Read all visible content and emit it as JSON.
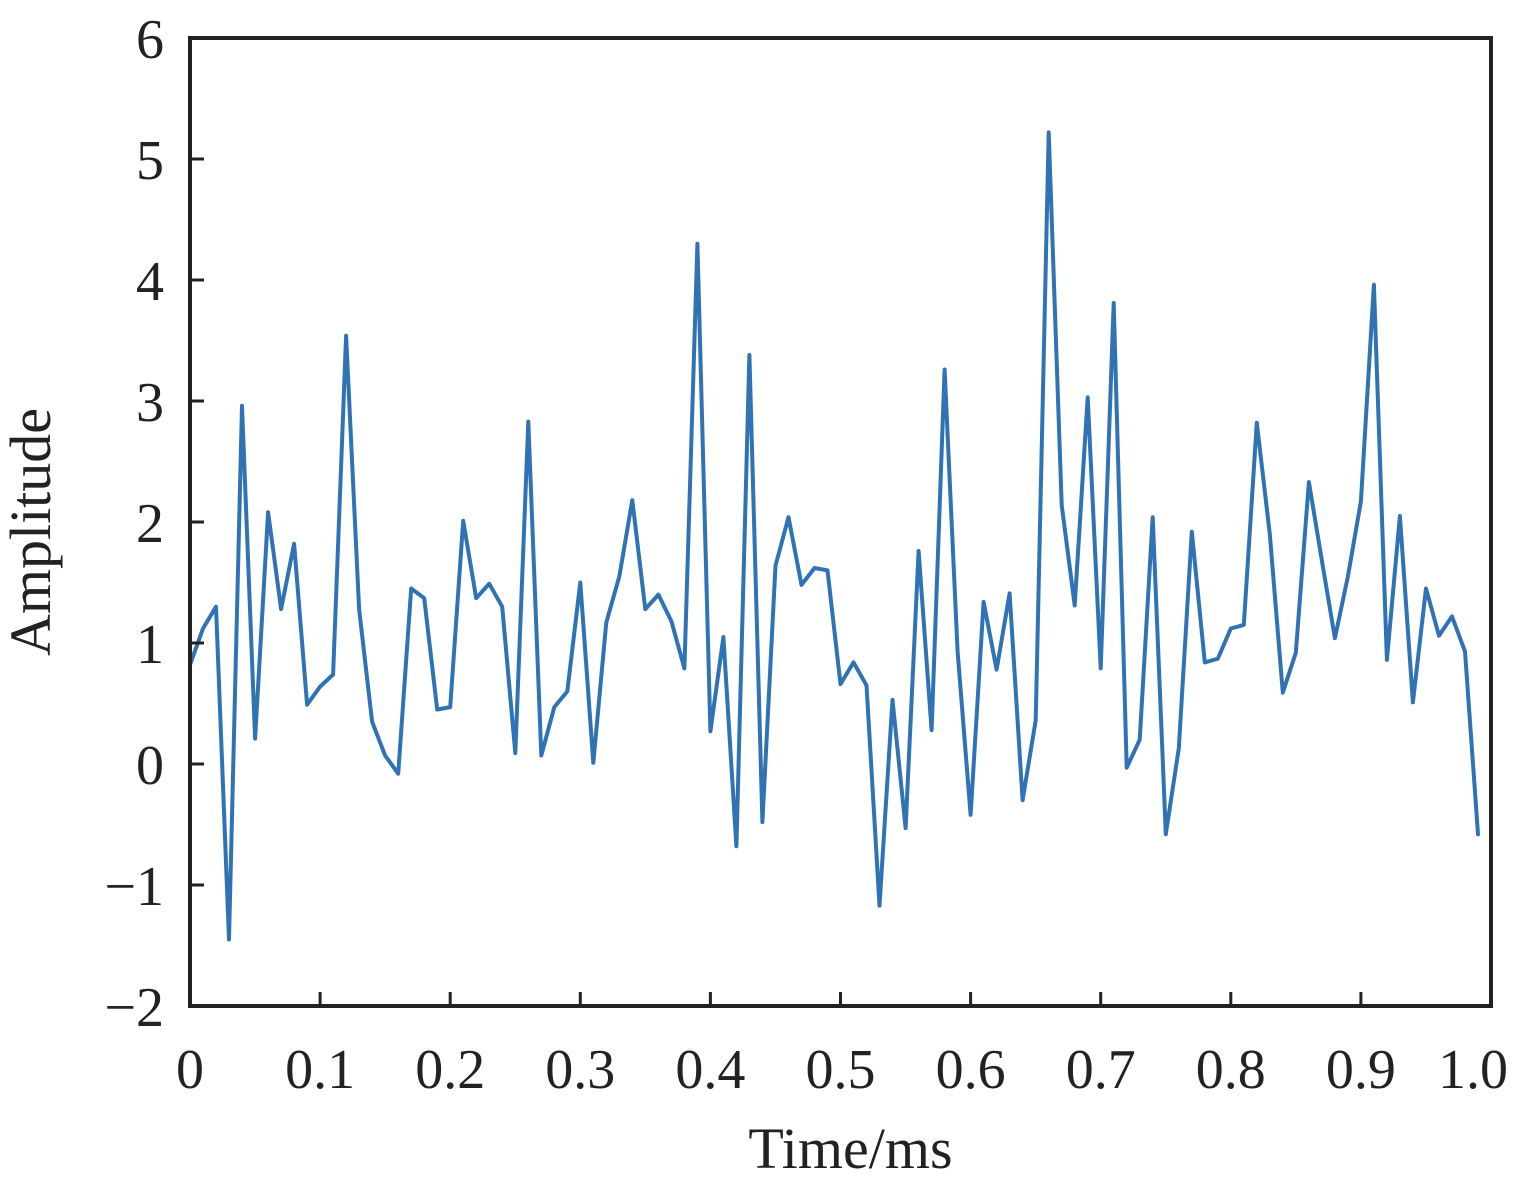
{
  "chart_data": {
    "type": "line",
    "title": "",
    "xlabel": "Time/ms",
    "ylabel": "Amplitude",
    "xlim": [
      0,
      1.0
    ],
    "ylim": [
      -2,
      6
    ],
    "xticks": [
      0,
      0.1,
      0.2,
      0.3,
      0.4,
      0.5,
      0.6,
      0.7,
      0.8,
      0.9,
      1.0
    ],
    "xtick_labels": [
      "0",
      "0.1",
      "0.2",
      "0.3",
      "0.4",
      "0.5",
      "0.6",
      "0.7",
      "0.8",
      "0.9",
      "1.0"
    ],
    "yticks": [
      -2,
      -1,
      0,
      1,
      2,
      3,
      4,
      5,
      6
    ],
    "ytick_labels": [
      "−2",
      "−1",
      "0",
      "1",
      "2",
      "3",
      "4",
      "5",
      "6"
    ],
    "grid": false,
    "legend": "none",
    "colors": {
      "series": "#2f73b5",
      "axes": "#222222"
    },
    "series": [
      {
        "x": [
          0,
          0.01,
          0.02,
          0.03,
          0.04,
          0.05,
          0.06,
          0.07,
          0.08,
          0.09,
          0.1,
          0.11,
          0.12,
          0.13,
          0.14,
          0.15,
          0.16,
          0.17,
          0.18,
          0.19,
          0.2,
          0.21,
          0.22,
          0.23,
          0.24,
          0.25,
          0.26,
          0.27,
          0.28,
          0.29,
          0.3,
          0.31,
          0.32,
          0.33,
          0.34,
          0.35,
          0.36,
          0.37,
          0.38,
          0.39,
          0.4,
          0.41,
          0.42,
          0.43,
          0.44,
          0.45,
          0.46,
          0.47,
          0.48,
          0.49,
          0.5,
          0.51,
          0.52,
          0.53,
          0.54,
          0.55,
          0.56,
          0.57,
          0.58,
          0.59,
          0.6,
          0.61,
          0.62,
          0.63,
          0.64,
          0.65,
          0.66,
          0.67,
          0.68,
          0.69,
          0.7,
          0.71,
          0.72,
          0.73,
          0.74,
          0.75,
          0.76,
          0.77,
          0.78,
          0.79,
          0.8,
          0.81,
          0.82,
          0.83,
          0.84,
          0.85,
          0.86,
          0.87,
          0.88,
          0.89,
          0.9,
          0.91,
          0.92,
          0.93,
          0.94,
          0.95,
          0.96,
          0.97,
          0.98,
          0.99
        ],
        "values": [
          0.82,
          1.12,
          1.3,
          -1.45,
          2.96,
          0.21,
          2.08,
          1.28,
          1.82,
          0.49,
          0.64,
          0.74,
          3.54,
          1.28,
          0.35,
          0.07,
          -0.08,
          1.45,
          1.37,
          0.45,
          0.47,
          2.01,
          1.37,
          1.49,
          1.3,
          0.09,
          2.83,
          0.07,
          0.47,
          0.6,
          1.5,
          0.01,
          1.17,
          1.55,
          2.18,
          1.28,
          1.4,
          1.18,
          0.79,
          4.3,
          0.27,
          1.05,
          -0.68,
          3.38,
          -0.48,
          1.64,
          2.04,
          1.48,
          1.62,
          1.6,
          0.66,
          0.84,
          0.65,
          -1.17,
          0.53,
          -0.53,
          1.76,
          0.28,
          3.26,
          0.93,
          -0.42,
          1.34,
          0.78,
          1.41,
          -0.3,
          0.36,
          5.22,
          2.14,
          1.31,
          3.03,
          0.79,
          3.81,
          -0.03,
          0.2,
          2.04,
          -0.58,
          0.13,
          1.92,
          0.84,
          0.87,
          1.12,
          1.15,
          2.82,
          1.9,
          0.59,
          0.92,
          2.33,
          1.68,
          1.04,
          1.55,
          2.17,
          3.96,
          0.86,
          2.05,
          0.51,
          1.45,
          1.06,
          1.22,
          0.93,
          -0.58
        ]
      }
    ]
  }
}
